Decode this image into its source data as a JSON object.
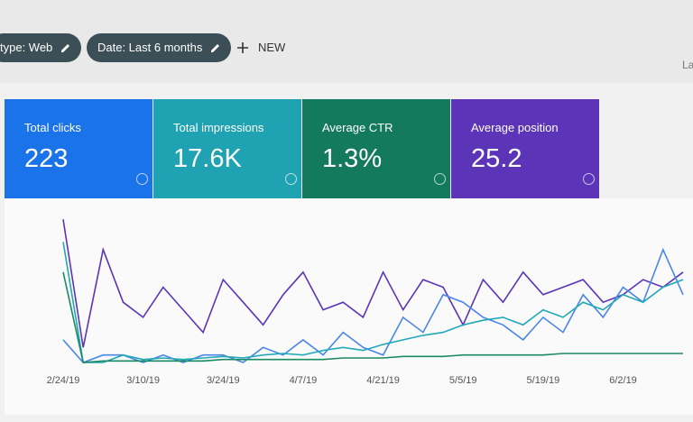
{
  "filters": [
    "type: Web",
    "Date: Last 6 months"
  ],
  "new_button": "NEW",
  "partial_text": "La",
  "metrics": [
    {
      "label": "Total clicks",
      "value": "223",
      "color": "#1a73e8"
    },
    {
      "label": "Total impressions",
      "value": "17.6K",
      "color": "#1fa3b2"
    },
    {
      "label": "Average CTR",
      "value": "1.3%",
      "color": "#137a5e"
    },
    {
      "label": "Average position",
      "value": "25.2",
      "color": "#5b34b8"
    }
  ],
  "chart_data": {
    "type": "line",
    "categories": [
      "2/24/19",
      null,
      null,
      null,
      "3/10/19",
      null,
      null,
      null,
      "3/24/19",
      null,
      null,
      null,
      "4/7/19",
      null,
      null,
      null,
      "4/21/19",
      null,
      null,
      null,
      "5/5/19",
      null,
      null,
      null,
      "5/19/19",
      null,
      null,
      null,
      "6/2/19",
      null,
      null,
      null
    ],
    "ylim": [
      0,
      100
    ],
    "series": [
      {
        "name": "Total impressions",
        "color": "#5b34b8",
        "values": [
          95,
          10,
          75,
          40,
          30,
          50,
          35,
          20,
          55,
          40,
          25,
          45,
          60,
          35,
          40,
          30,
          60,
          35,
          55,
          50,
          25,
          55,
          40,
          60,
          45,
          50,
          55,
          40,
          45,
          55,
          50,
          60
        ]
      },
      {
        "name": "Total clicks",
        "color": "#4a86e8",
        "values": [
          15,
          0,
          5,
          5,
          0,
          5,
          0,
          5,
          5,
          0,
          10,
          5,
          15,
          5,
          20,
          10,
          5,
          30,
          20,
          45,
          40,
          30,
          25,
          15,
          30,
          20,
          45,
          30,
          50,
          40,
          75,
          45
        ]
      },
      {
        "name": "Average CTR",
        "color": "#22a8b8",
        "values": [
          80,
          0,
          0,
          5,
          2,
          3,
          2,
          3,
          4,
          3,
          5,
          6,
          5,
          8,
          10,
          8,
          12,
          15,
          18,
          20,
          25,
          28,
          30,
          25,
          35,
          30,
          40,
          35,
          45,
          40,
          50,
          55
        ]
      },
      {
        "name": "Average position",
        "color": "#1a8a63",
        "values": [
          60,
          0,
          1,
          1,
          1,
          1,
          1,
          1,
          2,
          2,
          2,
          2,
          2,
          2,
          3,
          3,
          3,
          4,
          4,
          4,
          5,
          5,
          5,
          5,
          5,
          6,
          6,
          6,
          6,
          6,
          6,
          6
        ]
      }
    ]
  }
}
